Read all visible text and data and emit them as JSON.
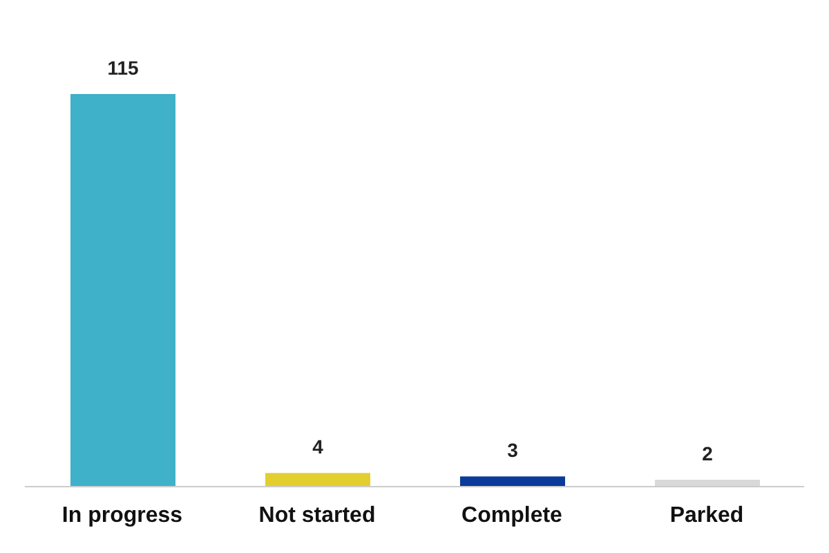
{
  "chart_data": {
    "type": "bar",
    "categories": [
      "In progress",
      "Not started",
      "Complete",
      "Parked"
    ],
    "values": [
      115,
      4,
      3,
      2
    ],
    "colors": [
      "#3fb1c9",
      "#e2cf2f",
      "#0a3a9a",
      "#d9d9d9"
    ],
    "data_labels": true,
    "grid": false,
    "legend": false
  }
}
